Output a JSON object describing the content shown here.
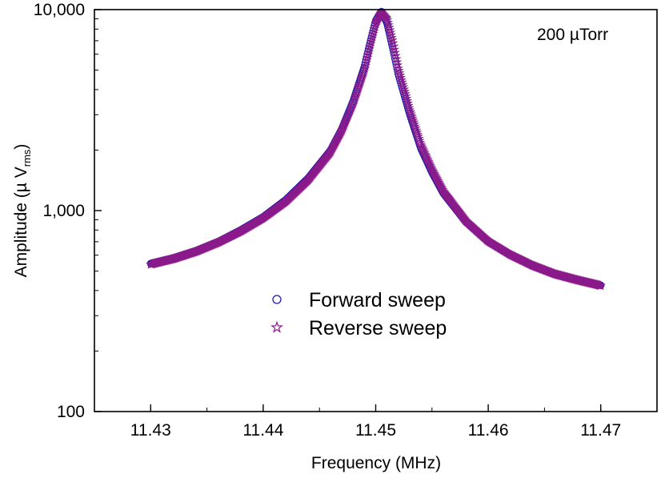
{
  "chart_data": {
    "type": "scatter",
    "title": "",
    "xlabel": "Frequency (MHz)",
    "ylabel_main": "Amplitude (µ V",
    "ylabel_sub": "rms",
    "ylabel_close": ")",
    "yscale": "log",
    "xlim": [
      11.425,
      11.475
    ],
    "ylim": [
      100,
      10000
    ],
    "x_ticks": [
      11.43,
      11.44,
      11.45,
      11.46,
      11.47
    ],
    "x_tick_labels": [
      "11.43",
      "11.44",
      "11.45",
      "11.46",
      "11.47"
    ],
    "y_ticks": [
      100,
      1000,
      10000
    ],
    "y_tick_labels": [
      "100",
      "1,000",
      "10,000"
    ],
    "annotation": "200 µTorr",
    "series": [
      {
        "name": "Forward sweep",
        "marker": "circle",
        "color": "#1a1aa8",
        "x": [
          11.43,
          11.432,
          11.434,
          11.436,
          11.438,
          11.44,
          11.442,
          11.444,
          11.446,
          11.447,
          11.448,
          11.449,
          11.4495,
          11.45,
          11.4505,
          11.451,
          11.4515,
          11.452,
          11.453,
          11.454,
          11.455,
          11.456,
          11.458,
          11.46,
          11.462,
          11.464,
          11.466,
          11.468,
          11.47
        ],
        "y": [
          545,
          580,
          630,
          700,
          800,
          930,
          1130,
          1450,
          2000,
          2550,
          3500,
          5200,
          6800,
          8800,
          9800,
          8600,
          6500,
          4800,
          3050,
          2050,
          1550,
          1220,
          880,
          700,
          600,
          530,
          480,
          450,
          425
        ]
      },
      {
        "name": "Reverse sweep",
        "marker": "star",
        "color": "#8b1a8b",
        "x": [
          11.43,
          11.432,
          11.434,
          11.436,
          11.438,
          11.44,
          11.442,
          11.444,
          11.446,
          11.447,
          11.448,
          11.449,
          11.4495,
          11.45,
          11.4505,
          11.451,
          11.4515,
          11.452,
          11.453,
          11.454,
          11.455,
          11.456,
          11.458,
          11.46,
          11.462,
          11.464,
          11.466,
          11.468,
          11.47
        ],
        "y": [
          540,
          575,
          625,
          695,
          790,
          920,
          1110,
          1420,
          1960,
          2500,
          3400,
          5000,
          6600,
          8500,
          9700,
          9000,
          7000,
          5100,
          3200,
          2130,
          1600,
          1250,
          890,
          705,
          603,
          532,
          482,
          450,
          423
        ]
      }
    ],
    "legend_position": "center-lower"
  },
  "colors": {
    "forward": "#1a1aa8",
    "reverse": "#8b1a8b",
    "axis": "#000000"
  },
  "icons": {
    "forward": "circle-marker-icon",
    "reverse": "star-marker-icon"
  }
}
